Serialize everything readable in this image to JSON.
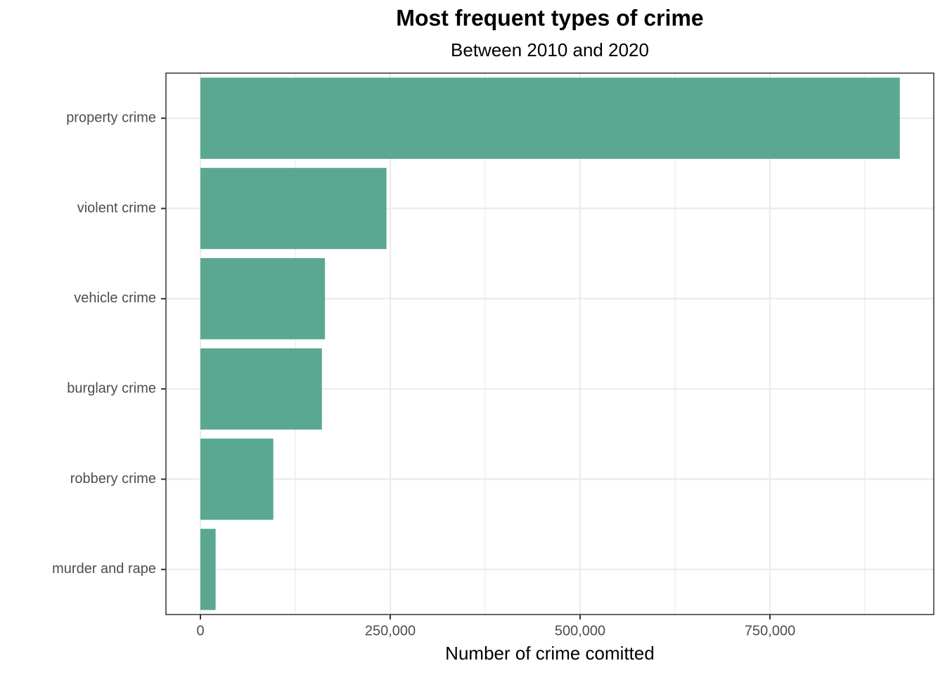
{
  "chart_data": {
    "type": "bar",
    "orientation": "horizontal",
    "title": "Most frequent types of crime",
    "subtitle": "Between 2010 and 2020",
    "x_label": "Number of crime comitted",
    "categories": [
      "property crime",
      "violent crime",
      "vehicle crime",
      "burglary crime",
      "robbery crime",
      "murder and rape"
    ],
    "values": [
      921000,
      245000,
      164000,
      160000,
      96000,
      20000
    ],
    "color": "#5aa891",
    "xlim": [
      -45400,
      965700
    ],
    "xticks": [
      0,
      {
        "value": 250000,
        "label": "250,000"
      },
      {
        "value": 500000,
        "label": "500,000"
      },
      {
        "value": 750000,
        "label": "750,000"
      }
    ],
    "grid": true
  }
}
